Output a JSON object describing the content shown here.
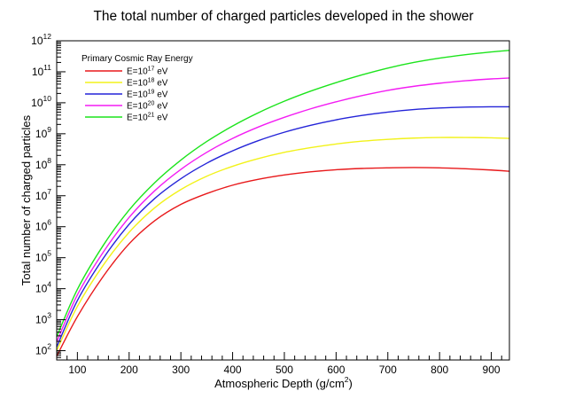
{
  "chart_data": {
    "type": "line",
    "title": "The total number of charged particles developed in the shower",
    "xlabel": "Atmospheric Depth (g/cm",
    "xlabel_sup": "2",
    "xlabel_tail": ")",
    "ylabel": "Total number of charged particles",
    "xlim": [
      60,
      935
    ],
    "ylim_log10": [
      1.7,
      12.0
    ],
    "yscale": "log",
    "grid": false,
    "legend_placement": "top-left",
    "legend_title": "Primary Cosmic Ray Energy",
    "x_ticks": [
      100,
      200,
      300,
      400,
      500,
      600,
      700,
      800,
      900
    ],
    "x_tick_labels": [
      "100",
      "200",
      "300",
      "400",
      "500",
      "600",
      "700",
      "800",
      "900"
    ],
    "y_ticks_exp": [
      2,
      3,
      4,
      5,
      6,
      7,
      8,
      9,
      10,
      11,
      12
    ],
    "y_tick_labels": [
      {
        "base": "10",
        "exp": "2"
      },
      {
        "base": "10",
        "exp": "3"
      },
      {
        "base": "10",
        "exp": "4"
      },
      {
        "base": "10",
        "exp": "5"
      },
      {
        "base": "10",
        "exp": "6"
      },
      {
        "base": "10",
        "exp": "7"
      },
      {
        "base": "10",
        "exp": "8"
      },
      {
        "base": "10",
        "exp": "9"
      },
      {
        "base": "10",
        "exp": "10"
      },
      {
        "base": "10",
        "exp": "11"
      },
      {
        "base": "10",
        "exp": "12"
      }
    ],
    "x": [
      60,
      100,
      150,
      200,
      250,
      300,
      350,
      400,
      450,
      500,
      550,
      600,
      650,
      700,
      750,
      800,
      850,
      900,
      935
    ],
    "series": [
      {
        "label_prefix": "E=10",
        "label_exp": "17",
        "label_suffix": " eV",
        "color": "#e8191b",
        "log10_values": [
          1.82,
          3.1,
          4.4,
          5.45,
          6.2,
          6.72,
          7.07,
          7.34,
          7.53,
          7.67,
          7.77,
          7.84,
          7.88,
          7.9,
          7.91,
          7.9,
          7.87,
          7.83,
          7.79
        ]
      },
      {
        "label_prefix": "E=10",
        "label_exp": "18",
        "label_suffix": " eV",
        "color": "#f2f21a",
        "log10_values": [
          2.0,
          3.43,
          4.76,
          5.82,
          6.62,
          7.2,
          7.63,
          7.95,
          8.2,
          8.4,
          8.55,
          8.67,
          8.76,
          8.82,
          8.86,
          8.88,
          8.88,
          8.87,
          8.85
        ]
      },
      {
        "label_prefix": "E=10",
        "label_exp": "19",
        "label_suffix": " eV",
        "color": "#2424d8",
        "log10_values": [
          2.12,
          3.62,
          4.98,
          6.08,
          6.92,
          7.55,
          8.05,
          8.45,
          8.78,
          9.05,
          9.27,
          9.45,
          9.59,
          9.7,
          9.78,
          9.83,
          9.86,
          9.87,
          9.87
        ]
      },
      {
        "label_prefix": "E=10",
        "label_exp": "20",
        "label_suffix": " eV",
        "color": "#f31cf3",
        "log10_values": [
          2.28,
          3.8,
          5.18,
          6.3,
          7.17,
          7.85,
          8.4,
          8.85,
          9.22,
          9.53,
          9.8,
          10.03,
          10.23,
          10.4,
          10.53,
          10.63,
          10.71,
          10.77,
          10.8
        ]
      },
      {
        "label_prefix": "E=10",
        "label_exp": "21",
        "label_suffix": " eV",
        "color": "#1ce41c",
        "log10_values": [
          2.45,
          3.98,
          5.4,
          6.54,
          7.43,
          8.15,
          8.75,
          9.25,
          9.68,
          10.05,
          10.37,
          10.65,
          10.9,
          11.12,
          11.3,
          11.44,
          11.55,
          11.64,
          11.69
        ]
      }
    ]
  }
}
